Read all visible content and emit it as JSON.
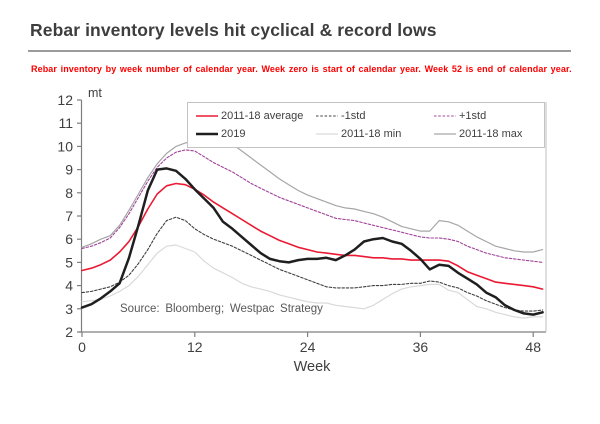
{
  "page": {
    "title": "Rebar inventory levels hit cyclical & record lows",
    "subtitle": "Rebar inventory by week number of calendar year. Week zero is start of calendar year. Week 52 is end of calendar year.",
    "source": "Source: Bloomberg; Westpac Strategy"
  },
  "chart_data": {
    "type": "line",
    "title": "Rebar inventory levels hit cyclical & record lows",
    "unit_label": "mt",
    "xlabel": "Week",
    "ylabel": "mt",
    "xlim": [
      0,
      49.5
    ],
    "ylim": [
      2,
      12
    ],
    "x_ticks": [
      0,
      12,
      24,
      36,
      48
    ],
    "y_ticks": [
      2,
      3,
      4,
      5,
      6,
      7,
      8,
      9,
      10,
      11,
      12
    ],
    "grid": "off",
    "legend_position": "top-right-box",
    "x_step_weeks": 1,
    "colors": {
      "average": "#ea1a33",
      "minus1std": "#3f3f3f",
      "plus1std": "#a0449a",
      "y2019": "#1f1f1f",
      "min": "#d9d9d9",
      "max": "#a6a6a6",
      "axis": "#7f7f7f",
      "plot_border": "#bfbfbf",
      "note_red": "#fe0000"
    },
    "series": [
      {
        "name": "2011-18 average",
        "color": "#ea1a33",
        "width": 1.6,
        "dash": "",
        "values": [
          4.65,
          4.75,
          4.9,
          5.1,
          5.45,
          5.9,
          6.55,
          7.3,
          7.95,
          8.3,
          8.4,
          8.35,
          8.15,
          7.9,
          7.6,
          7.35,
          7.1,
          6.85,
          6.6,
          6.35,
          6.15,
          5.95,
          5.8,
          5.65,
          5.55,
          5.45,
          5.4,
          5.35,
          5.3,
          5.3,
          5.25,
          5.2,
          5.2,
          5.15,
          5.15,
          5.1,
          5.1,
          5.1,
          5.1,
          5.05,
          4.85,
          4.6,
          4.45,
          4.3,
          4.15,
          4.1,
          4.05,
          4.0,
          3.95,
          3.85
        ]
      },
      {
        "name": "-1std",
        "color": "#3f3f3f",
        "width": 1.1,
        "dash": "2.5,1.8",
        "values": [
          3.7,
          3.75,
          3.85,
          3.95,
          4.15,
          4.45,
          4.95,
          5.55,
          6.25,
          6.8,
          6.95,
          6.8,
          6.45,
          6.2,
          6.0,
          5.85,
          5.7,
          5.5,
          5.3,
          5.1,
          4.9,
          4.7,
          4.55,
          4.4,
          4.25,
          4.1,
          3.95,
          3.9,
          3.9,
          3.9,
          3.95,
          4.0,
          4.0,
          4.05,
          4.05,
          4.1,
          4.1,
          4.2,
          4.15,
          4.0,
          3.9,
          3.7,
          3.55,
          3.35,
          3.2,
          3.05,
          2.95,
          2.9,
          2.9,
          2.95
        ]
      },
      {
        "name": "+1std",
        "color": "#a0449a",
        "width": 1.1,
        "dash": "2.5,1.8",
        "values": [
          5.6,
          5.7,
          5.85,
          6.05,
          6.5,
          7.1,
          7.8,
          8.5,
          9.1,
          9.5,
          9.75,
          9.85,
          9.8,
          9.55,
          9.3,
          9.1,
          8.9,
          8.65,
          8.4,
          8.2,
          8.0,
          7.8,
          7.65,
          7.5,
          7.35,
          7.2,
          7.05,
          6.9,
          6.85,
          6.8,
          6.7,
          6.6,
          6.5,
          6.4,
          6.3,
          6.2,
          6.1,
          6.05,
          6.05,
          6.0,
          5.9,
          5.7,
          5.55,
          5.4,
          5.3,
          5.2,
          5.15,
          5.1,
          5.05,
          5.0
        ]
      },
      {
        "name": "2019",
        "color": "#1f1f1f",
        "width": 2.5,
        "dash": "",
        "values": [
          3.05,
          3.2,
          3.45,
          3.75,
          4.1,
          5.2,
          6.6,
          8.1,
          9.0,
          9.05,
          8.95,
          8.6,
          8.15,
          7.75,
          7.35,
          6.75,
          6.45,
          6.1,
          5.75,
          5.4,
          5.15,
          5.05,
          5.0,
          5.1,
          5.15,
          5.15,
          5.2,
          5.1,
          5.3,
          5.55,
          5.9,
          6.0,
          6.05,
          5.9,
          5.8,
          5.5,
          5.15,
          4.7,
          4.9,
          4.85,
          4.55,
          4.3,
          4.05,
          3.7,
          3.5,
          3.15,
          2.95,
          2.8,
          2.75,
          2.85
        ]
      },
      {
        "name": "2011-18 min",
        "color": "#d9d9d9",
        "width": 1.2,
        "dash": "",
        "values": [
          3.3,
          3.35,
          3.4,
          3.55,
          3.75,
          4.0,
          4.4,
          4.9,
          5.4,
          5.7,
          5.75,
          5.6,
          5.45,
          5.05,
          4.75,
          4.55,
          4.35,
          4.1,
          3.95,
          3.85,
          3.75,
          3.6,
          3.5,
          3.4,
          3.3,
          3.25,
          3.25,
          3.15,
          3.1,
          3.05,
          3.0,
          3.15,
          3.4,
          3.65,
          3.85,
          3.95,
          4.0,
          4.05,
          4.05,
          3.8,
          3.7,
          3.4,
          3.1,
          3.0,
          2.85,
          2.75,
          2.65,
          2.6,
          2.65,
          2.65
        ]
      },
      {
        "name": "2011-18 max",
        "color": "#a6a6a6",
        "width": 1.2,
        "dash": "",
        "values": [
          5.65,
          5.8,
          6.0,
          6.15,
          6.6,
          7.25,
          7.95,
          8.65,
          9.25,
          9.7,
          10.0,
          10.15,
          10.2,
          10.1,
          10.0,
          10.1,
          10.1,
          9.8,
          9.5,
          9.2,
          8.9,
          8.6,
          8.35,
          8.1,
          7.9,
          7.75,
          7.6,
          7.45,
          7.35,
          7.3,
          7.2,
          7.1,
          6.95,
          6.75,
          6.55,
          6.45,
          6.35,
          6.35,
          6.8,
          6.75,
          6.6,
          6.35,
          6.1,
          5.9,
          5.7,
          5.6,
          5.5,
          5.45,
          5.45,
          5.55
        ]
      }
    ]
  }
}
